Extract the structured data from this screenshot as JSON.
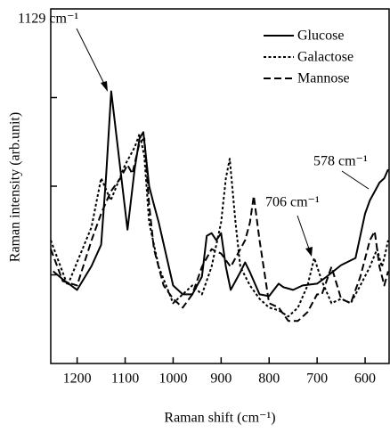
{
  "chart_data": {
    "type": "line",
    "xlabel": "Raman shift (cm⁻¹)",
    "ylabel": "Raman intensity (arb.unit)",
    "xlim": [
      1255,
      550
    ],
    "xticks": [
      1200,
      1100,
      1000,
      900,
      800,
      700,
      600
    ],
    "ylim": [
      0,
      4
    ],
    "yticks": [
      1,
      2,
      3
    ],
    "legend": "upper right",
    "annotations": [
      "1129 cm⁻¹",
      "706 cm⁻¹",
      "578 cm⁻¹"
    ],
    "series": [
      {
        "name": "Glucose",
        "color": "#000000",
        "style": "solid",
        "x": [
          1250,
          1230,
          1200,
          1170,
          1150,
          1140,
          1129,
          1110,
          1095,
          1080,
          1070,
          1062,
          1050,
          1040,
          1030,
          1000,
          980,
          960,
          940,
          930,
          920,
          910,
          900,
          890,
          880,
          860,
          850,
          840,
          820,
          800,
          780,
          770,
          750,
          730,
          700,
          680,
          650,
          620,
          600,
          590,
          580,
          570,
          560,
          552
        ],
        "values": [
          1.04,
          0.95,
          0.83,
          1.1,
          1.34,
          2.09,
          3.07,
          2.19,
          1.51,
          2.2,
          2.54,
          2.61,
          2.0,
          1.79,
          1.59,
          0.88,
          0.78,
          0.78,
          0.98,
          1.44,
          1.47,
          1.39,
          1.47,
          1.09,
          0.83,
          1.03,
          1.14,
          1.03,
          0.78,
          0.76,
          0.9,
          0.86,
          0.83,
          0.88,
          0.9,
          0.98,
          1.11,
          1.19,
          1.69,
          1.84,
          1.94,
          2.04,
          2.09,
          2.19
        ]
      },
      {
        "name": "Galactose",
        "color": "#000000",
        "style": "dotted",
        "x": [
          1255,
          1220,
          1170,
          1150,
          1130,
          1100,
          1080,
          1070,
          1060,
          1050,
          1030,
          1000,
          980,
          960,
          940,
          920,
          900,
          890,
          882,
          870,
          860,
          840,
          820,
          800,
          780,
          760,
          740,
          720,
          706,
          690,
          670,
          650,
          630,
          610,
          590,
          575,
          565,
          560,
          552
        ],
        "values": [
          1.39,
          0.88,
          1.54,
          2.09,
          1.84,
          2.24,
          2.44,
          2.59,
          2.34,
          1.59,
          1.09,
          0.68,
          0.78,
          0.88,
          0.78,
          1.09,
          1.59,
          2.09,
          2.31,
          1.59,
          1.09,
          0.88,
          0.73,
          0.63,
          0.6,
          0.53,
          0.63,
          0.88,
          1.19,
          0.93,
          0.68,
          0.73,
          0.68,
          0.88,
          1.09,
          1.29,
          1.09,
          1.19,
          1.39
        ]
      },
      {
        "name": "Mannose",
        "color": "#000000",
        "style": "dashed",
        "x": [
          1255,
          1230,
          1200,
          1170,
          1150,
          1130,
          1110,
          1095,
          1085,
          1070,
          1060,
          1050,
          1040,
          1020,
          1000,
          980,
          960,
          940,
          920,
          900,
          880,
          860,
          850,
          840,
          832,
          820,
          800,
          780,
          760,
          740,
          720,
          700,
          690,
          670,
          650,
          630,
          610,
          590,
          580,
          570,
          560,
          552
        ],
        "values": [
          1.29,
          0.93,
          0.88,
          1.39,
          1.69,
          1.94,
          2.09,
          2.24,
          2.14,
          2.49,
          2.54,
          1.79,
          1.29,
          0.88,
          0.73,
          0.63,
          0.78,
          1.09,
          1.29,
          1.24,
          1.09,
          1.29,
          1.39,
          1.59,
          1.89,
          1.39,
          0.68,
          0.63,
          0.48,
          0.48,
          0.58,
          0.78,
          0.78,
          1.09,
          0.73,
          0.68,
          0.98,
          1.39,
          1.49,
          1.09,
          0.88,
          1.04
        ]
      }
    ]
  }
}
